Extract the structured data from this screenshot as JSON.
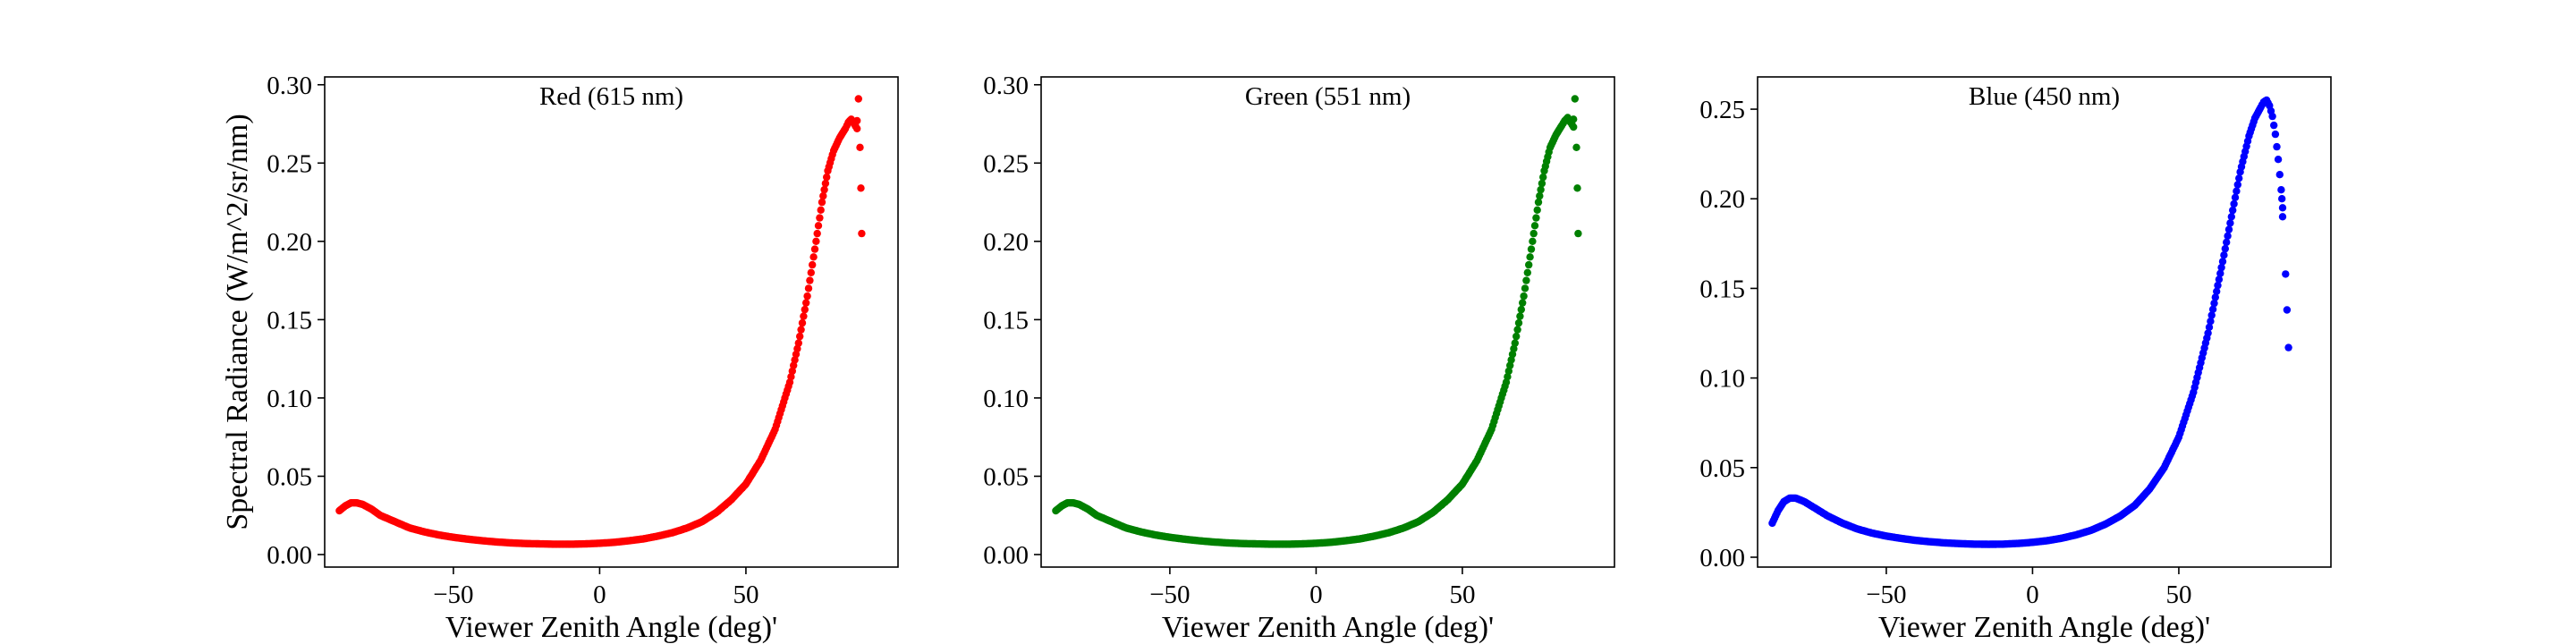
{
  "figure": {
    "ylabel": "Spectral Radiance (W/m^2/sr/nm)"
  },
  "chart_data": [
    {
      "type": "scatter",
      "title": "Red (615 nm)",
      "xlabel": "Viewer Zenith Angle (deg)'",
      "ylabel": "Spectral Radiance (W/m^2/sr/nm)",
      "color": "#ff0000",
      "xlim": [
        -94,
        102
      ],
      "ylim": [
        -0.008,
        0.305
      ],
      "xticks": [
        -50,
        0,
        50
      ],
      "xtick_labels": [
        "−50",
        "0",
        "50"
      ],
      "yticks": [
        0.0,
        0.05,
        0.1,
        0.15,
        0.2,
        0.25,
        0.3
      ],
      "ytick_labels": [
        "0.00",
        "0.05",
        "0.10",
        "0.15",
        "0.20",
        "0.25",
        "0.30"
      ],
      "grid": false,
      "curve": [
        [
          -89,
          0.028
        ],
        [
          -87,
          0.031
        ],
        [
          -85,
          0.033
        ],
        [
          -83,
          0.033
        ],
        [
          -81,
          0.032
        ],
        [
          -78,
          0.029
        ],
        [
          -75,
          0.025
        ],
        [
          -70,
          0.021
        ],
        [
          -65,
          0.017
        ],
        [
          -60,
          0.0145
        ],
        [
          -55,
          0.0125
        ],
        [
          -50,
          0.011
        ],
        [
          -45,
          0.0098
        ],
        [
          -40,
          0.0088
        ],
        [
          -35,
          0.008
        ],
        [
          -30,
          0.0074
        ],
        [
          -25,
          0.007
        ],
        [
          -20,
          0.0068
        ],
        [
          -15,
          0.0066
        ],
        [
          -10,
          0.0066
        ],
        [
          -5,
          0.0068
        ],
        [
          0,
          0.0072
        ],
        [
          5,
          0.0078
        ],
        [
          10,
          0.0088
        ],
        [
          15,
          0.01
        ],
        [
          20,
          0.0118
        ],
        [
          25,
          0.014
        ],
        [
          30,
          0.017
        ],
        [
          35,
          0.021
        ],
        [
          40,
          0.027
        ],
        [
          45,
          0.035
        ],
        [
          50,
          0.045
        ],
        [
          55,
          0.06
        ],
        [
          60,
          0.08
        ],
        [
          65,
          0.11
        ],
        [
          68,
          0.135
        ],
        [
          71,
          0.165
        ],
        [
          74,
          0.2
        ],
        [
          76,
          0.225
        ],
        [
          78,
          0.245
        ],
        [
          80,
          0.258
        ],
        [
          82,
          0.266
        ],
        [
          84,
          0.272
        ],
        [
          85,
          0.276
        ],
        [
          86,
          0.278
        ],
        [
          87,
          0.275
        ],
        [
          88,
          0.272
        ]
      ],
      "outliers": [
        [
          88,
          0.277
        ],
        [
          88.5,
          0.291
        ],
        [
          89,
          0.26
        ],
        [
          89.3,
          0.234
        ],
        [
          89.6,
          0.205
        ]
      ]
    },
    {
      "type": "scatter",
      "title": "Green (551 nm)",
      "xlabel": "Viewer Zenith Angle (deg)'",
      "ylabel": "",
      "color": "#008000",
      "xlim": [
        -94,
        102
      ],
      "ylim": [
        -0.008,
        0.305
      ],
      "xticks": [
        -50,
        0,
        50
      ],
      "xtick_labels": [
        "−50",
        "0",
        "50"
      ],
      "yticks": [
        0.0,
        0.05,
        0.1,
        0.15,
        0.2,
        0.25,
        0.3
      ],
      "ytick_labels": [
        "0.00",
        "0.05",
        "0.10",
        "0.15",
        "0.20",
        "0.25",
        "0.30"
      ],
      "grid": false,
      "curve": [
        [
          -89,
          0.028
        ],
        [
          -87,
          0.031
        ],
        [
          -85,
          0.033
        ],
        [
          -83,
          0.033
        ],
        [
          -81,
          0.032
        ],
        [
          -78,
          0.029
        ],
        [
          -75,
          0.025
        ],
        [
          -70,
          0.021
        ],
        [
          -65,
          0.017
        ],
        [
          -60,
          0.0145
        ],
        [
          -55,
          0.0125
        ],
        [
          -50,
          0.011
        ],
        [
          -45,
          0.0098
        ],
        [
          -40,
          0.0088
        ],
        [
          -35,
          0.008
        ],
        [
          -30,
          0.0074
        ],
        [
          -25,
          0.007
        ],
        [
          -20,
          0.0068
        ],
        [
          -15,
          0.0066
        ],
        [
          -10,
          0.0066
        ],
        [
          -5,
          0.0068
        ],
        [
          0,
          0.0072
        ],
        [
          5,
          0.0078
        ],
        [
          10,
          0.0088
        ],
        [
          15,
          0.01
        ],
        [
          20,
          0.0118
        ],
        [
          25,
          0.014
        ],
        [
          30,
          0.017
        ],
        [
          35,
          0.021
        ],
        [
          40,
          0.027
        ],
        [
          45,
          0.035
        ],
        [
          50,
          0.045
        ],
        [
          55,
          0.06
        ],
        [
          60,
          0.08
        ],
        [
          65,
          0.11
        ],
        [
          68,
          0.135
        ],
        [
          71,
          0.165
        ],
        [
          74,
          0.2
        ],
        [
          76,
          0.225
        ],
        [
          78,
          0.245
        ],
        [
          80,
          0.26
        ],
        [
          82,
          0.268
        ],
        [
          84,
          0.274
        ],
        [
          85,
          0.277
        ],
        [
          86,
          0.279
        ],
        [
          87,
          0.276
        ],
        [
          88,
          0.273
        ]
      ],
      "outliers": [
        [
          88,
          0.278
        ],
        [
          88.5,
          0.291
        ],
        [
          89,
          0.26
        ],
        [
          89.3,
          0.234
        ],
        [
          89.6,
          0.205
        ]
      ]
    },
    {
      "type": "scatter",
      "title": "Blue (450 nm)",
      "xlabel": "Viewer Zenith Angle (deg)'",
      "ylabel": "",
      "color": "#0000ff",
      "xlim": [
        -94,
        102
      ],
      "ylim": [
        -0.0055,
        0.268
      ],
      "xticks": [
        -50,
        0,
        50
      ],
      "xtick_labels": [
        "−50",
        "0",
        "50"
      ],
      "yticks": [
        0.0,
        0.05,
        0.1,
        0.15,
        0.2,
        0.25
      ],
      "ytick_labels": [
        "0.00",
        "0.05",
        "0.10",
        "0.15",
        "0.20",
        "0.25"
      ],
      "grid": false,
      "curve": [
        [
          -89,
          0.019
        ],
        [
          -87,
          0.026
        ],
        [
          -85,
          0.031
        ],
        [
          -83,
          0.033
        ],
        [
          -81,
          0.033
        ],
        [
          -78,
          0.031
        ],
        [
          -75,
          0.028
        ],
        [
          -70,
          0.023
        ],
        [
          -65,
          0.019
        ],
        [
          -60,
          0.0158
        ],
        [
          -55,
          0.0135
        ],
        [
          -50,
          0.0118
        ],
        [
          -45,
          0.0105
        ],
        [
          -40,
          0.0094
        ],
        [
          -35,
          0.0086
        ],
        [
          -30,
          0.008
        ],
        [
          -25,
          0.0076
        ],
        [
          -20,
          0.0073
        ],
        [
          -15,
          0.0072
        ],
        [
          -10,
          0.0073
        ],
        [
          -5,
          0.0077
        ],
        [
          0,
          0.0083
        ],
        [
          5,
          0.0092
        ],
        [
          10,
          0.0106
        ],
        [
          15,
          0.0125
        ],
        [
          20,
          0.015
        ],
        [
          25,
          0.0185
        ],
        [
          30,
          0.023
        ],
        [
          35,
          0.029
        ],
        [
          40,
          0.038
        ],
        [
          45,
          0.05
        ],
        [
          50,
          0.067
        ],
        [
          55,
          0.092
        ],
        [
          60,
          0.125
        ],
        [
          65,
          0.165
        ],
        [
          68,
          0.19
        ],
        [
          71,
          0.215
        ],
        [
          74,
          0.235
        ],
        [
          76,
          0.245
        ],
        [
          78,
          0.251
        ],
        [
          79,
          0.254
        ],
        [
          80,
          0.255
        ],
        [
          81,
          0.252
        ],
        [
          82,
          0.246
        ],
        [
          83,
          0.236
        ],
        [
          84,
          0.222
        ],
        [
          85,
          0.205
        ],
        [
          85.5,
          0.195
        ]
      ],
      "outliers": [
        [
          85.5,
          0.19
        ],
        [
          86.5,
          0.158
        ],
        [
          87,
          0.138
        ],
        [
          87.5,
          0.117
        ]
      ]
    }
  ]
}
